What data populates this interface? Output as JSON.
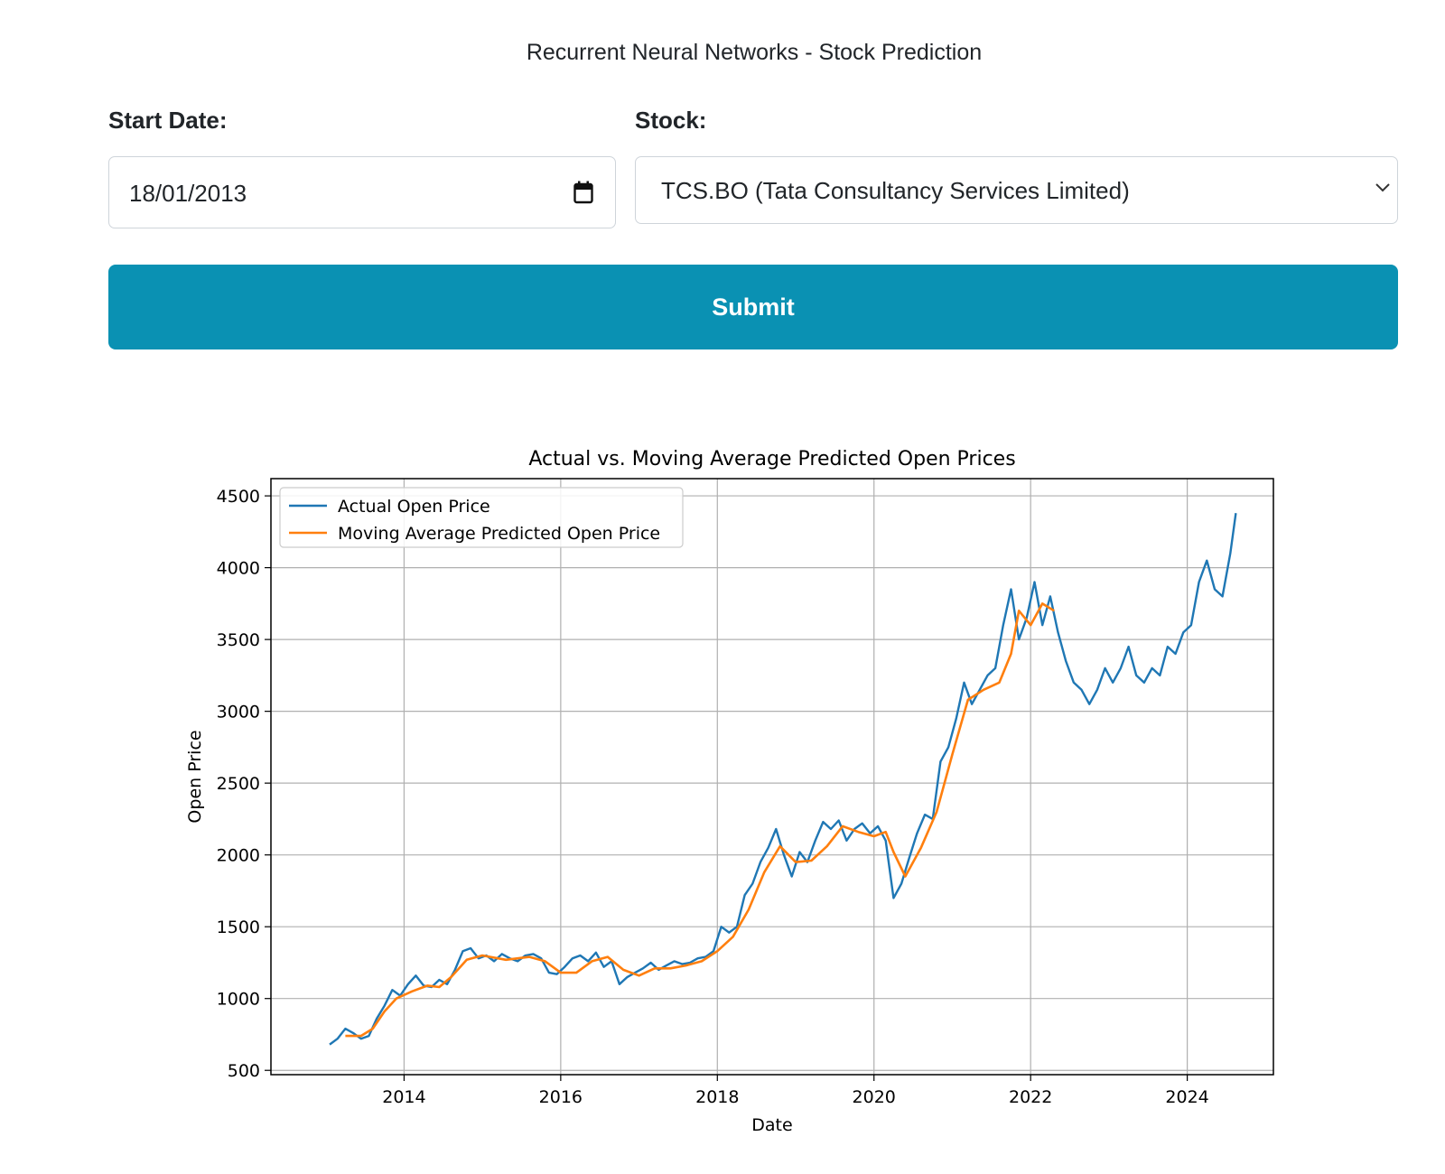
{
  "page": {
    "title": "Recurrent Neural Networks - Stock Prediction"
  },
  "form": {
    "start_date_label": "Start Date:",
    "start_date_value": "18/01/2013",
    "stock_label": "Stock:",
    "stock_value": "TCS.BO (Tata Consultancy Services Limited)",
    "submit_label": "Submit"
  },
  "colors": {
    "accent": "#0a91b3",
    "actual": "#1f77b4",
    "predicted": "#ff7f0e"
  },
  "chart_data": {
    "type": "line",
    "title": "Actual vs. Moving Average Predicted Open Prices",
    "xlabel": "Date",
    "ylabel": "Open Price",
    "xlim": [
      2012.3,
      2025.1
    ],
    "ylim": [
      470,
      4620
    ],
    "xticks": [
      2014,
      2016,
      2018,
      2020,
      2022,
      2024
    ],
    "yticks": [
      500,
      1000,
      1500,
      2000,
      2500,
      3000,
      3500,
      4000,
      4500
    ],
    "grid": true,
    "legend": "top-left",
    "series": [
      {
        "name": "Actual Open Price",
        "color": "#1f77b4",
        "x": [
          2013.05,
          2013.15,
          2013.25,
          2013.35,
          2013.45,
          2013.55,
          2013.65,
          2013.75,
          2013.85,
          2013.95,
          2014.05,
          2014.15,
          2014.25,
          2014.35,
          2014.45,
          2014.55,
          2014.65,
          2014.75,
          2014.85,
          2014.95,
          2015.05,
          2015.15,
          2015.25,
          2015.35,
          2015.45,
          2015.55,
          2015.65,
          2015.75,
          2015.85,
          2015.95,
          2016.05,
          2016.15,
          2016.25,
          2016.35,
          2016.45,
          2016.55,
          2016.65,
          2016.75,
          2016.85,
          2016.95,
          2017.05,
          2017.15,
          2017.25,
          2017.35,
          2017.45,
          2017.55,
          2017.65,
          2017.75,
          2017.85,
          2017.95,
          2018.05,
          2018.15,
          2018.25,
          2018.35,
          2018.45,
          2018.55,
          2018.65,
          2018.75,
          2018.85,
          2018.95,
          2019.05,
          2019.15,
          2019.25,
          2019.35,
          2019.45,
          2019.55,
          2019.65,
          2019.75,
          2019.85,
          2019.95,
          2020.05,
          2020.15,
          2020.25,
          2020.35,
          2020.45,
          2020.55,
          2020.65,
          2020.75,
          2020.85,
          2020.95,
          2021.05,
          2021.15,
          2021.25,
          2021.35,
          2021.45,
          2021.55,
          2021.65,
          2021.75,
          2021.85,
          2021.95,
          2022.05,
          2022.15,
          2022.25,
          2022.35,
          2022.45,
          2022.55,
          2022.65,
          2022.75,
          2022.85,
          2022.95,
          2023.05,
          2023.15,
          2023.25,
          2023.35,
          2023.45,
          2023.55,
          2023.65,
          2023.75,
          2023.85,
          2023.95,
          2024.05,
          2024.15,
          2024.25,
          2024.35,
          2024.45,
          2024.55,
          2024.62
        ],
        "values": [
          680,
          720,
          790,
          760,
          720,
          740,
          860,
          950,
          1060,
          1020,
          1100,
          1160,
          1090,
          1080,
          1130,
          1100,
          1200,
          1330,
          1350,
          1280,
          1300,
          1260,
          1310,
          1280,
          1260,
          1300,
          1310,
          1280,
          1180,
          1170,
          1220,
          1280,
          1300,
          1260,
          1320,
          1220,
          1260,
          1100,
          1150,
          1180,
          1210,
          1250,
          1200,
          1230,
          1260,
          1240,
          1250,
          1280,
          1290,
          1330,
          1500,
          1460,
          1500,
          1720,
          1800,
          1950,
          2050,
          2180,
          2000,
          1850,
          2020,
          1950,
          2100,
          2230,
          2180,
          2240,
          2100,
          2180,
          2220,
          2150,
          2200,
          2100,
          1700,
          1800,
          1980,
          2150,
          2280,
          2250,
          2650,
          2750,
          2950,
          3200,
          3050,
          3150,
          3250,
          3300,
          3600,
          3850,
          3500,
          3650,
          3900,
          3600,
          3800,
          3550,
          3350,
          3200,
          3150,
          3050,
          3150,
          3300,
          3200,
          3300,
          3450,
          3250,
          3200,
          3300,
          3250,
          3450,
          3400,
          3550,
          3600,
          3900,
          4050,
          3850,
          3800,
          4100,
          4380
        ]
      },
      {
        "name": "Moving Average Predicted Open Price",
        "color": "#ff7f0e",
        "x": [
          2013.25,
          2013.45,
          2013.6,
          2013.75,
          2013.9,
          2014.1,
          2014.3,
          2014.45,
          2014.6,
          2014.8,
          2015.0,
          2015.3,
          2015.6,
          2015.8,
          2016.0,
          2016.2,
          2016.4,
          2016.6,
          2016.8,
          2017.0,
          2017.2,
          2017.4,
          2017.6,
          2017.8,
          2018.0,
          2018.2,
          2018.4,
          2018.6,
          2018.8,
          2019.0,
          2019.2,
          2019.4,
          2019.6,
          2019.8,
          2020.0,
          2020.15,
          2020.25,
          2020.4,
          2020.6,
          2020.8,
          2021.0,
          2021.2,
          2021.4,
          2021.6,
          2021.75,
          2021.85,
          2022.0,
          2022.15,
          2022.3
        ],
        "values": [
          740,
          740,
          790,
          910,
          1000,
          1050,
          1090,
          1080,
          1150,
          1270,
          1300,
          1270,
          1290,
          1260,
          1180,
          1180,
          1260,
          1290,
          1200,
          1160,
          1210,
          1210,
          1230,
          1260,
          1330,
          1430,
          1620,
          1880,
          2060,
          1950,
          1960,
          2060,
          2200,
          2160,
          2130,
          2160,
          2020,
          1850,
          2050,
          2300,
          2700,
          3080,
          3150,
          3200,
          3400,
          3700,
          3600,
          3750,
          3700
        ]
      }
    ]
  }
}
